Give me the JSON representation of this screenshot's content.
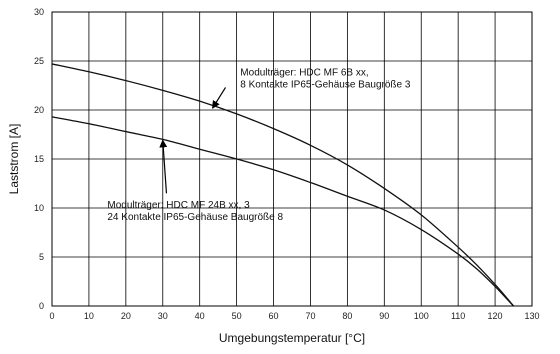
{
  "chart_data": {
    "type": "line",
    "xlabel": "Umgebungstemperatur [°C]",
    "ylabel": "Laststrom [A]",
    "xlim": [
      0,
      130
    ],
    "ylim": [
      0,
      30
    ],
    "xticks": [
      0,
      10,
      20,
      30,
      40,
      50,
      60,
      70,
      80,
      90,
      100,
      110,
      120,
      130
    ],
    "yticks": [
      0,
      5,
      10,
      15,
      20,
      25,
      30
    ],
    "grid": "both",
    "series": [
      {
        "id": "mf6b",
        "x": [
          0,
          10,
          20,
          30,
          40,
          50,
          60,
          70,
          80,
          90,
          100,
          110,
          115,
          120,
          123,
          125
        ],
        "y": [
          24.7,
          23.9,
          23.0,
          22.0,
          20.9,
          19.6,
          18.1,
          16.4,
          14.4,
          12.0,
          9.3,
          6.0,
          4.2,
          2.2,
          0.9,
          0.0
        ]
      },
      {
        "id": "mf24b",
        "x": [
          0,
          10,
          20,
          30,
          40,
          50,
          60,
          70,
          80,
          90,
          100,
          110,
          115,
          120,
          123,
          125
        ],
        "y": [
          19.3,
          18.6,
          17.8,
          17.0,
          16.0,
          15.0,
          13.9,
          12.6,
          11.2,
          9.8,
          7.8,
          5.3,
          3.8,
          2.0,
          0.8,
          0.0
        ]
      }
    ],
    "annotations": [
      {
        "id": "ann-mf6b",
        "lines": [
          "Modulträger: HDC MF 6B xx,",
          "8 Kontakte IP65-Gehäuse Baugröße 3"
        ],
        "text_at": [
          51,
          23.5
        ],
        "arrow_from": [
          47,
          22.3
        ],
        "arrow_to": [
          43.5,
          20.2
        ]
      },
      {
        "id": "ann-mf24b",
        "lines": [
          "Modulträger: HDC MF 24B xx, 3",
          "24 Kontakte IP65-Gehäuse Baugröße 8"
        ],
        "text_at": [
          15,
          10.0
        ],
        "arrow_from": [
          31,
          11.5
        ],
        "arrow_to": [
          30,
          16.9
        ]
      }
    ]
  }
}
